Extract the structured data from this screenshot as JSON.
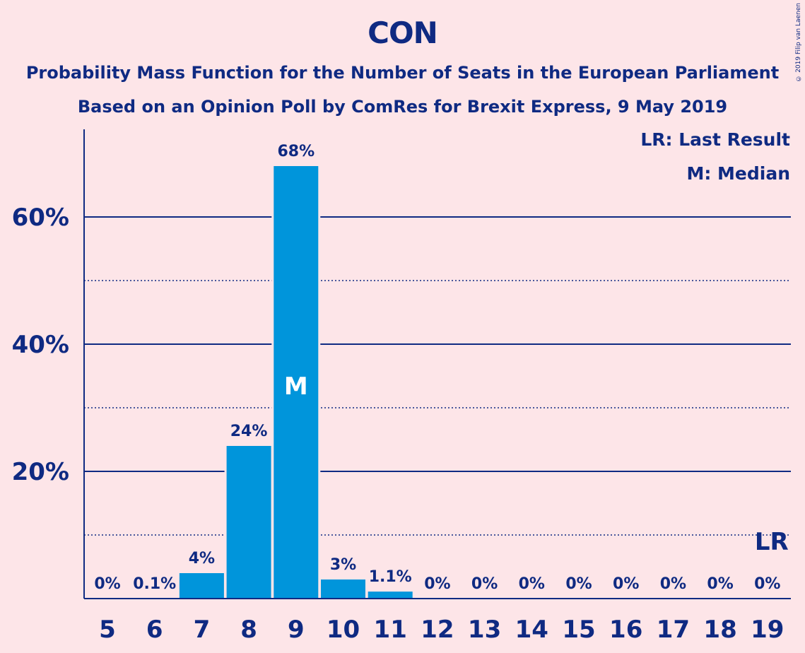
{
  "title": "CON",
  "subtitle_1": "Probability Mass Function for the Number of Seats in the European Parliament",
  "subtitle_2": "Based on an Opinion Poll by ComRes for Brexit Express, 9 May 2019",
  "copyright": "© 2019 Filip van Laenen",
  "legend": {
    "last_result": "LR: Last Result",
    "median": "M: Median"
  },
  "colors": {
    "background": "#fde5e8",
    "bar": "#0095db",
    "text": "#0f2a82"
  },
  "chart_data": {
    "type": "bar",
    "categories": [
      "5",
      "6",
      "7",
      "8",
      "9",
      "10",
      "11",
      "12",
      "13",
      "14",
      "15",
      "16",
      "17",
      "18",
      "19"
    ],
    "values": [
      0,
      0.1,
      4,
      24,
      68,
      3,
      1.1,
      0,
      0,
      0,
      0,
      0,
      0,
      0,
      0
    ],
    "value_labels": [
      "0%",
      "0.1%",
      "4%",
      "24%",
      "68%",
      "3%",
      "1.1%",
      "0%",
      "0%",
      "0%",
      "0%",
      "0%",
      "0%",
      "0%",
      "0%"
    ],
    "ylim": [
      0,
      74
    ],
    "yticks": [
      20,
      40,
      60
    ],
    "ytick_labels": [
      "20%",
      "40%",
      "60%"
    ],
    "minor_gridlines": [
      10,
      30,
      50
    ],
    "median_seat": "9",
    "median_marker": "M",
    "last_result_seat": "19",
    "last_result_marker": "LR"
  }
}
